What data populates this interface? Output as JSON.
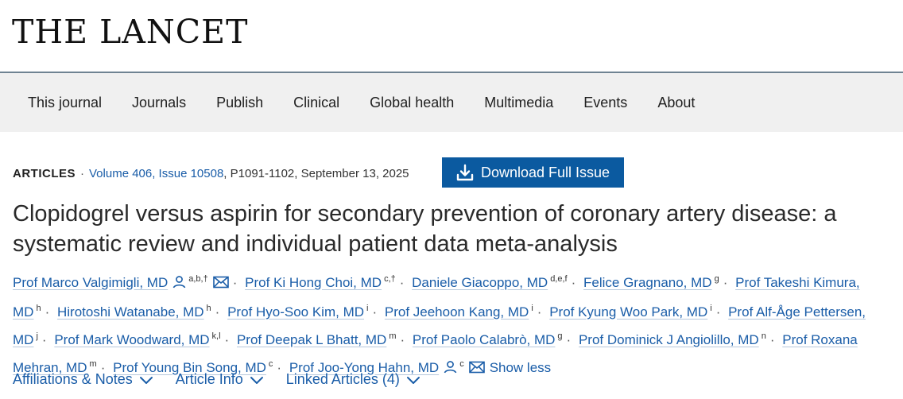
{
  "brand": {
    "logo_text": "THE LANCET"
  },
  "nav": {
    "items": [
      "This journal",
      "Journals",
      "Publish",
      "Clinical",
      "Global health",
      "Multimedia",
      "Events",
      "About"
    ]
  },
  "meta": {
    "articles": "ARTICLES",
    "sep": "·",
    "volume_link": "Volume 406, Issue 10508",
    "pages_date": ", P1091-1102, September 13, 2025"
  },
  "download": {
    "label": "Download Full Issue",
    "icon": "download-icon"
  },
  "title": "Clopidogrel versus aspirin for secondary prevention of coronary artery disease: a systematic review and individual patient data meta-analysis",
  "authors": [
    {
      "name": "Prof Marco Valgimigli, MD",
      "sup": "a,b,†",
      "person_icon": true,
      "mail_icon": true
    },
    {
      "name": "Prof Ki Hong Choi, MD",
      "sup": "c,†"
    },
    {
      "name": "Daniele Giacoppo, MD",
      "sup": "d,e,f"
    },
    {
      "name": "Felice Gragnano, MD",
      "sup": "g"
    },
    {
      "name": "Prof Takeshi Kimura, MD",
      "sup": "h"
    },
    {
      "name": "Hirotoshi Watanabe, MD",
      "sup": "h"
    },
    {
      "name": "Prof Hyo-Soo Kim, MD",
      "sup": "i"
    },
    {
      "name": "Prof Jeehoon Kang, MD",
      "sup": "i"
    },
    {
      "name": "Prof Kyung Woo Park, MD",
      "sup": "i"
    },
    {
      "name": "Prof Alf-Åge Pettersen, MD",
      "sup": "j"
    },
    {
      "name": "Prof Mark Woodward, MD",
      "sup": "k,l"
    },
    {
      "name": "Prof Deepak L Bhatt, MD",
      "sup": "m"
    },
    {
      "name": "Prof Paolo Calabrò, MD",
      "sup": "g"
    },
    {
      "name": "Prof Dominick J Angiolillo, MD",
      "sup": "n"
    },
    {
      "name": "Prof Roxana Mehran, MD",
      "sup": "m"
    },
    {
      "name": "Prof Young Bin Song, MD",
      "sup": "c"
    },
    {
      "name": "Prof Joo-Yong Hahn, MD",
      "sup": "c",
      "person_icon": true,
      "mail_icon": true
    }
  ],
  "author_sep": "·",
  "show_less": "Show less",
  "tabs": [
    "Affiliations & Notes",
    "Article Info",
    "Linked Articles (4)"
  ],
  "colors": {
    "link": "#1a5da8",
    "button": "#0b5aa0",
    "nav_bg": "#f0f0f0"
  }
}
